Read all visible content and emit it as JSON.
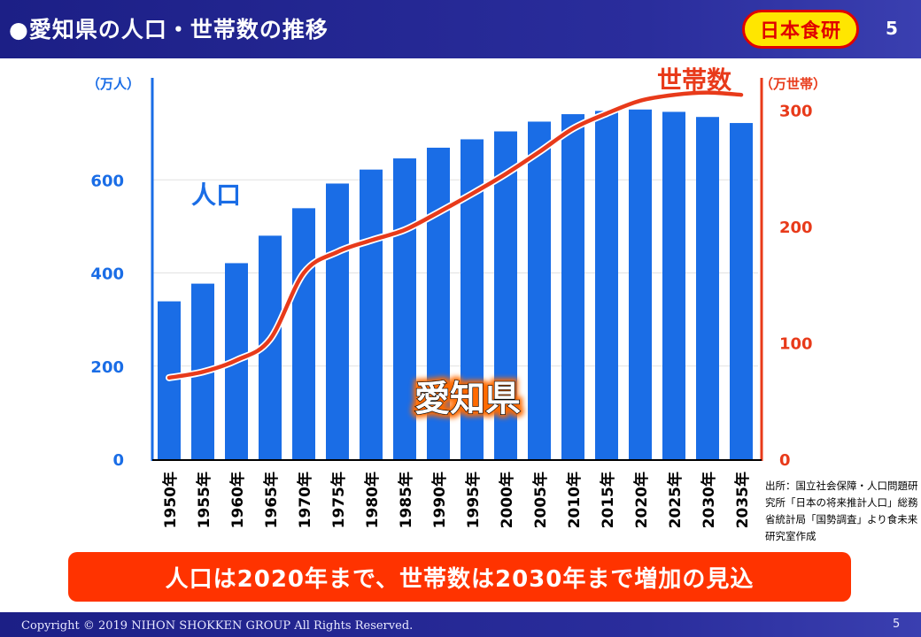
{
  "header": {
    "title": "●愛知県の人口・世帯数の推移",
    "logo_text": "日本食研",
    "page_number": "5"
  },
  "chart_data": {
    "type": "bar+line",
    "categories": [
      "1950年",
      "1955年",
      "1960年",
      "1965年",
      "1970年",
      "1975年",
      "1980年",
      "1985年",
      "1990年",
      "1995年",
      "2000年",
      "2005年",
      "2010年",
      "2015年",
      "2020年",
      "2025年",
      "2030年",
      "2035年"
    ],
    "series": [
      {
        "name": "人口",
        "type": "bar",
        "axis": "left",
        "color": "#1a6de6",
        "values": [
          339,
          377,
          421,
          480,
          539,
          592,
          622,
          646,
          669,
          687,
          704,
          725,
          741,
          748,
          751,
          746,
          735,
          722
        ]
      },
      {
        "name": "世帯数",
        "type": "line",
        "axis": "right",
        "color": "#e83a1a",
        "values": [
          70,
          75,
          85,
          103,
          160,
          178,
          188,
          197,
          212,
          228,
          245,
          264,
          284,
          297,
          308,
          313,
          315,
          313
        ]
      }
    ],
    "left_axis": {
      "label": "（万人）",
      "ticks": [
        0,
        200,
        400,
        600
      ],
      "range": [
        0,
        800
      ]
    },
    "right_axis": {
      "label": "（万世帯）",
      "ticks": [
        0,
        100,
        200,
        300
      ],
      "range": [
        0,
        320
      ]
    },
    "annotations": {
      "population": "人口",
      "households": "世帯数",
      "region": "愛知県"
    }
  },
  "source": "出所：国立社会保障・人口問題研究所「日本の将来推計人口」総務省統計局「国勢調査」より食未来研究室作成",
  "callout": "人口は2020年まで、世帯数は2030年まで増加の見込",
  "footer": {
    "copyright": "Copyright © 2019 NIHON SHOKKEN GROUP All Rights Reserved.",
    "page_number": "5"
  }
}
